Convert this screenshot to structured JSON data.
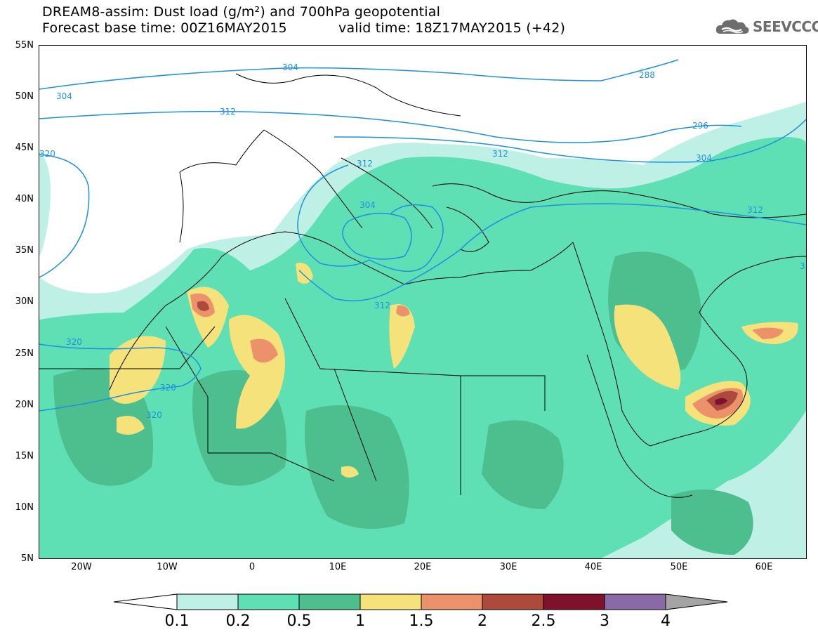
{
  "header": {
    "line1": "DREAM8-assim: Dust load (g/m²) and 700hPa geopotential",
    "base_time": "Forecast base time: 00Z16MAY2015",
    "valid_time": "valid time: 18Z17MAY2015 (+42)"
  },
  "logo": {
    "icon": "cloud-icon",
    "text": "SEEVCCC"
  },
  "axes": {
    "lat_labels": [
      "55N",
      "50N",
      "45N",
      "40N",
      "35N",
      "30N",
      "25N",
      "20N",
      "15N",
      "10N",
      "5N"
    ],
    "lon_labels": [
      "20W",
      "10W",
      "0",
      "10E",
      "20E",
      "30E",
      "40E",
      "50E",
      "60E"
    ]
  },
  "contour_labels": [
    "304",
    "304",
    "288",
    "312",
    "296",
    "320",
    "312",
    "312",
    "304",
    "312",
    "304",
    "312",
    "320",
    "320",
    "320",
    "3"
  ],
  "colorbar": {
    "labels": [
      "0.1",
      "0.2",
      "0.5",
      "1",
      "1.5",
      "2",
      "2.5",
      "3",
      "4"
    ],
    "colors": [
      "#bff0e6",
      "#5ee0b4",
      "#4dbf8f",
      "#f5e27a",
      "#eb926a",
      "#ad4a3c",
      "#80112d",
      "#8a6aa6",
      "#a4a4a4"
    ]
  },
  "colors": {
    "contour": "#1e90e0",
    "land_border": "#000000"
  }
}
